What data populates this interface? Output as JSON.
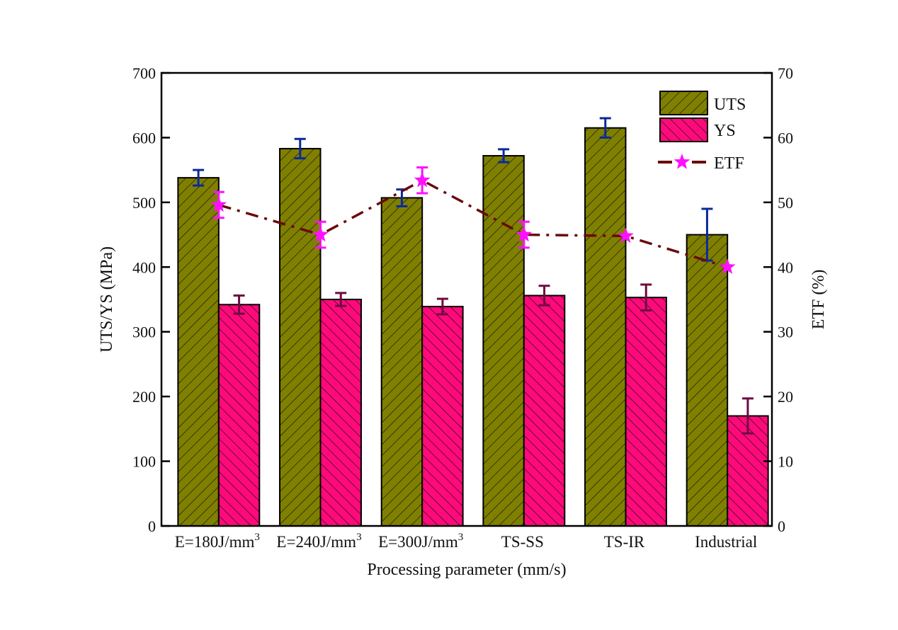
{
  "chart_data": {
    "type": "bar",
    "title": "",
    "xlabel": "Processing parameter (mm/s)",
    "ylabel": "UTS/YS (MPa)",
    "y2label": "ETF (%)",
    "ylim": [
      0,
      700
    ],
    "y2lim": [
      0,
      70
    ],
    "yticks": [
      0,
      100,
      200,
      300,
      400,
      500,
      600,
      700
    ],
    "y2ticks": [
      0,
      10,
      20,
      30,
      40,
      50,
      60,
      70
    ],
    "grid": false,
    "legend_position": "top-right",
    "categories": [
      {
        "base": "E=180J/mm",
        "sup": "3"
      },
      {
        "base": "E=240J/mm",
        "sup": "3"
      },
      {
        "base": "E=300J/mm",
        "sup": "3"
      },
      {
        "base": "TS-SS",
        "sup": ""
      },
      {
        "base": "TS-IR",
        "sup": ""
      },
      {
        "base": "Industrial",
        "sup": ""
      }
    ],
    "series": [
      {
        "name": "UTS",
        "type": "bar",
        "axis": "left",
        "color": "#808000",
        "hatch": "backslash",
        "error_color": "#0a2a9a",
        "values": [
          538,
          583,
          507,
          572,
          615,
          450
        ],
        "errors": [
          12,
          15,
          13,
          10,
          15,
          40
        ]
      },
      {
        "name": "YS",
        "type": "bar",
        "axis": "left",
        "color": "#ff0a7a",
        "hatch": "slash",
        "error_color": "#6e0a40",
        "values": [
          342,
          350,
          339,
          356,
          353,
          170
        ],
        "errors": [
          14,
          10,
          12,
          15,
          20,
          27
        ]
      },
      {
        "name": "ETF",
        "type": "line",
        "axis": "right",
        "line_color": "#6b0a0a",
        "marker": "star",
        "marker_color": "#ff10ff",
        "line_style": "dash-dot",
        "values": [
          49.6,
          45.0,
          53.4,
          45.0,
          44.8,
          40.0
        ],
        "errors": [
          2.0,
          2.0,
          2.0,
          2.0,
          0,
          0
        ]
      }
    ]
  }
}
